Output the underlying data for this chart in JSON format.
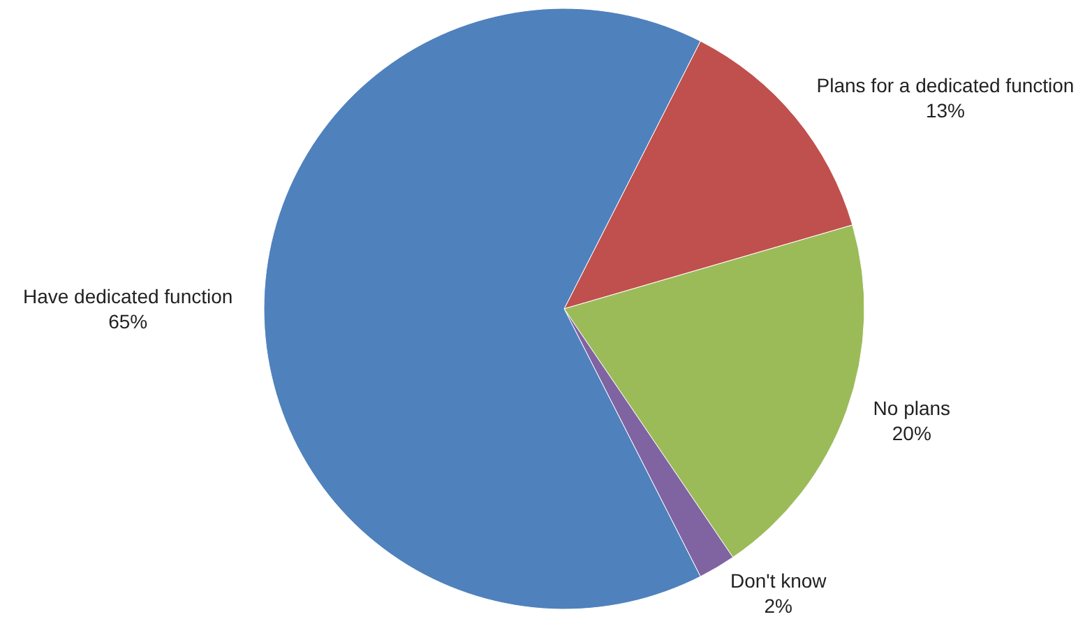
{
  "chart_data": {
    "type": "pie",
    "categories": [
      "Plans for a dedicated function",
      "No plans",
      "Don't know",
      "Have dedicated function"
    ],
    "values": [
      13,
      20,
      2,
      65
    ],
    "colors": [
      "#c0504d",
      "#9bbb59",
      "#8064a2",
      "#4f81bd"
    ],
    "value_labels": [
      "13%",
      "20%",
      "2%",
      "65%"
    ],
    "legend": false
  }
}
